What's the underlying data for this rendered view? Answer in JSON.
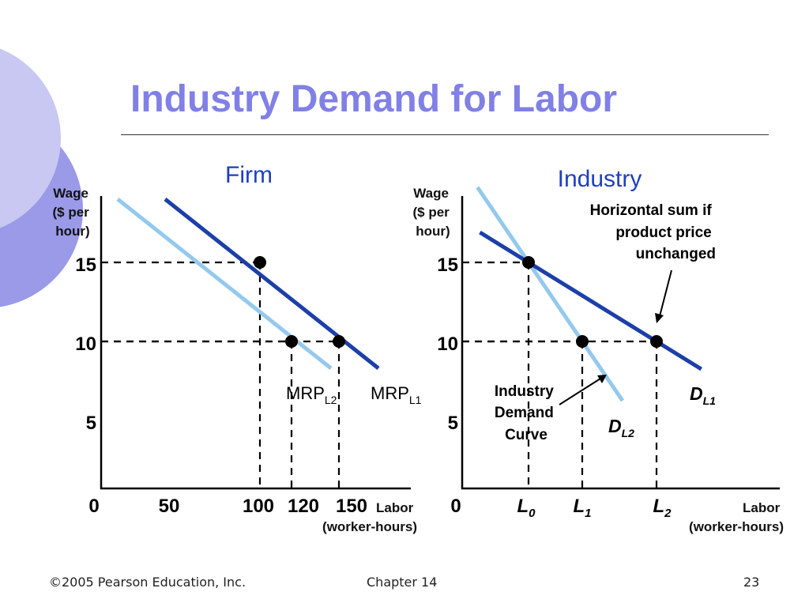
{
  "slide": {
    "title": "Industry Demand for Labor",
    "footer_left": "©2005 Pearson Education, Inc.",
    "footer_center": "Chapter 14",
    "footer_right": "23",
    "colors": {
      "title": "#8080e6",
      "decor_outer": "#9a9ae8",
      "decor_inner": "#c8c8f2",
      "dark_blue": "#1c3fa8",
      "light_blue": "#94c9ee",
      "panel_title": "#1f3fbf"
    }
  },
  "chart_data": [
    {
      "type": "line",
      "title": "Firm",
      "ylabel": [
        "Wage",
        "($ per",
        "hour)"
      ],
      "xlabel": [
        "Labor",
        "(worker-hours)"
      ],
      "y_ticks": [
        "15",
        "10",
        "5"
      ],
      "x_ticks": [
        "0",
        "50",
        "100",
        "120",
        "150"
      ],
      "series": [
        {
          "name": "MRPL1",
          "label_main": "MRP",
          "label_sub": "L1",
          "color": "#1c3fa8",
          "points": [
            {
              "x": 40,
              "y": 19
            },
            {
              "x": 175,
              "y": 8.3
            }
          ]
        },
        {
          "name": "MRPL2",
          "label_main": "MRP",
          "label_sub": "L2",
          "color": "#94c9ee",
          "points": [
            {
              "x": 10,
              "y": 19
            },
            {
              "x": 145,
              "y": 8.3
            }
          ]
        }
      ],
      "points": [
        {
          "x": 100,
          "y": 15
        },
        {
          "x": 120,
          "y": 10
        },
        {
          "x": 150,
          "y": 10
        }
      ]
    },
    {
      "type": "line",
      "title": "Industry",
      "ylabel": [
        "Wage",
        "($ per",
        "hour)"
      ],
      "xlabel": [
        "Labor",
        "(worker-hours)"
      ],
      "y_ticks": [
        "15",
        "10",
        "5"
      ],
      "x_ticks": [
        "0",
        "L",
        "L",
        "L"
      ],
      "x_tick_subs": [
        "",
        "0",
        "1",
        "2"
      ],
      "series": [
        {
          "name": "DL1",
          "label_main": "D",
          "label_sub": "L1",
          "color": "#1c3fa8"
        },
        {
          "name": "DL2",
          "label_main": "D",
          "label_sub": "L2",
          "color": "#94c9ee"
        }
      ],
      "points": [
        {
          "x_label": "L0",
          "y": 15
        },
        {
          "x_label": "L1",
          "y": 10
        },
        {
          "x_label": "L2",
          "y": 10
        }
      ],
      "annotations": [
        {
          "text": [
            "Horizontal sum if",
            "product price",
            "unchanged"
          ]
        },
        {
          "text": [
            "Industry",
            "Demand",
            "Curve"
          ]
        }
      ]
    }
  ]
}
